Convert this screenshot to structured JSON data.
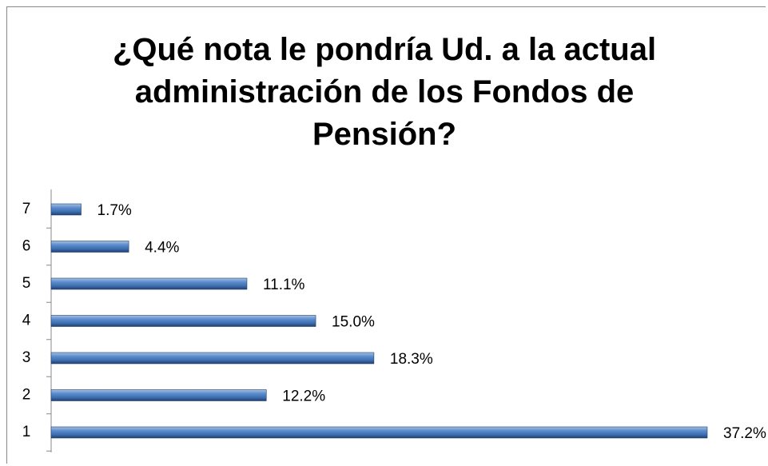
{
  "chart_data": {
    "type": "bar",
    "orientation": "horizontal",
    "title": "¿Qué nota le pondría Ud. a la actual administración de los Fondos de Pensión?",
    "categories": [
      "1",
      "2",
      "3",
      "4",
      "5",
      "6",
      "7"
    ],
    "values": [
      37.2,
      12.2,
      18.3,
      15.0,
      11.1,
      4.4,
      1.7
    ],
    "value_labels": [
      "37.2%",
      "12.2%",
      "18.3%",
      "15.0%",
      "11.1%",
      "4.4%",
      "1.7%"
    ],
    "color": "#4f81bd"
  }
}
